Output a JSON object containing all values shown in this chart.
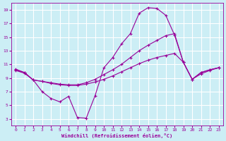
{
  "xlabel": "Windchill (Refroidissement éolien,°C)",
  "xlim": [
    -0.5,
    23.5
  ],
  "ylim": [
    2,
    20
  ],
  "xticks": [
    0,
    1,
    2,
    3,
    4,
    5,
    6,
    7,
    8,
    9,
    10,
    11,
    12,
    13,
    14,
    15,
    16,
    17,
    18,
    19,
    20,
    21,
    22,
    23
  ],
  "yticks": [
    3,
    5,
    7,
    9,
    11,
    13,
    15,
    17,
    19
  ],
  "background_color": "#cceef5",
  "grid_color": "#ffffff",
  "line_color": "#990099",
  "lines": [
    {
      "x": [
        0,
        1,
        2,
        3,
        4,
        5,
        6,
        7,
        8,
        9,
        10,
        11,
        12,
        13,
        14,
        15,
        16,
        17,
        18,
        19,
        20,
        21,
        22,
        23
      ],
      "y": [
        10.3,
        9.8,
        8.7,
        7.0,
        6.0,
        5.5,
        6.3,
        3.2,
        3.1,
        6.4,
        10.5,
        12.0,
        14.0,
        15.5,
        18.5,
        19.3,
        19.2,
        18.2,
        15.3,
        11.3,
        8.8,
        9.8,
        10.2,
        10.5
      ]
    },
    {
      "x": [
        0,
        1,
        2,
        3,
        4,
        5,
        6,
        7,
        8,
        9,
        10,
        11,
        12,
        13,
        14,
        15,
        16,
        17,
        18,
        19,
        20,
        21,
        22,
        23
      ],
      "y": [
        10.2,
        9.8,
        8.7,
        8.5,
        8.3,
        8.1,
        8.0,
        8.0,
        8.3,
        8.8,
        9.5,
        10.2,
        11.0,
        12.0,
        13.0,
        13.8,
        14.5,
        15.2,
        15.5,
        11.3,
        8.8,
        9.8,
        10.2,
        10.5
      ]
    },
    {
      "x": [
        0,
        1,
        2,
        3,
        4,
        5,
        6,
        7,
        8,
        9,
        10,
        11,
        12,
        13,
        14,
        15,
        16,
        17,
        18,
        19,
        20,
        21,
        22,
        23
      ],
      "y": [
        10.1,
        9.7,
        8.7,
        8.5,
        8.2,
        8.0,
        7.9,
        7.9,
        8.1,
        8.4,
        8.8,
        9.3,
        9.9,
        10.5,
        11.1,
        11.6,
        12.0,
        12.3,
        12.6,
        11.3,
        8.8,
        9.6,
        10.1,
        10.5
      ]
    }
  ]
}
